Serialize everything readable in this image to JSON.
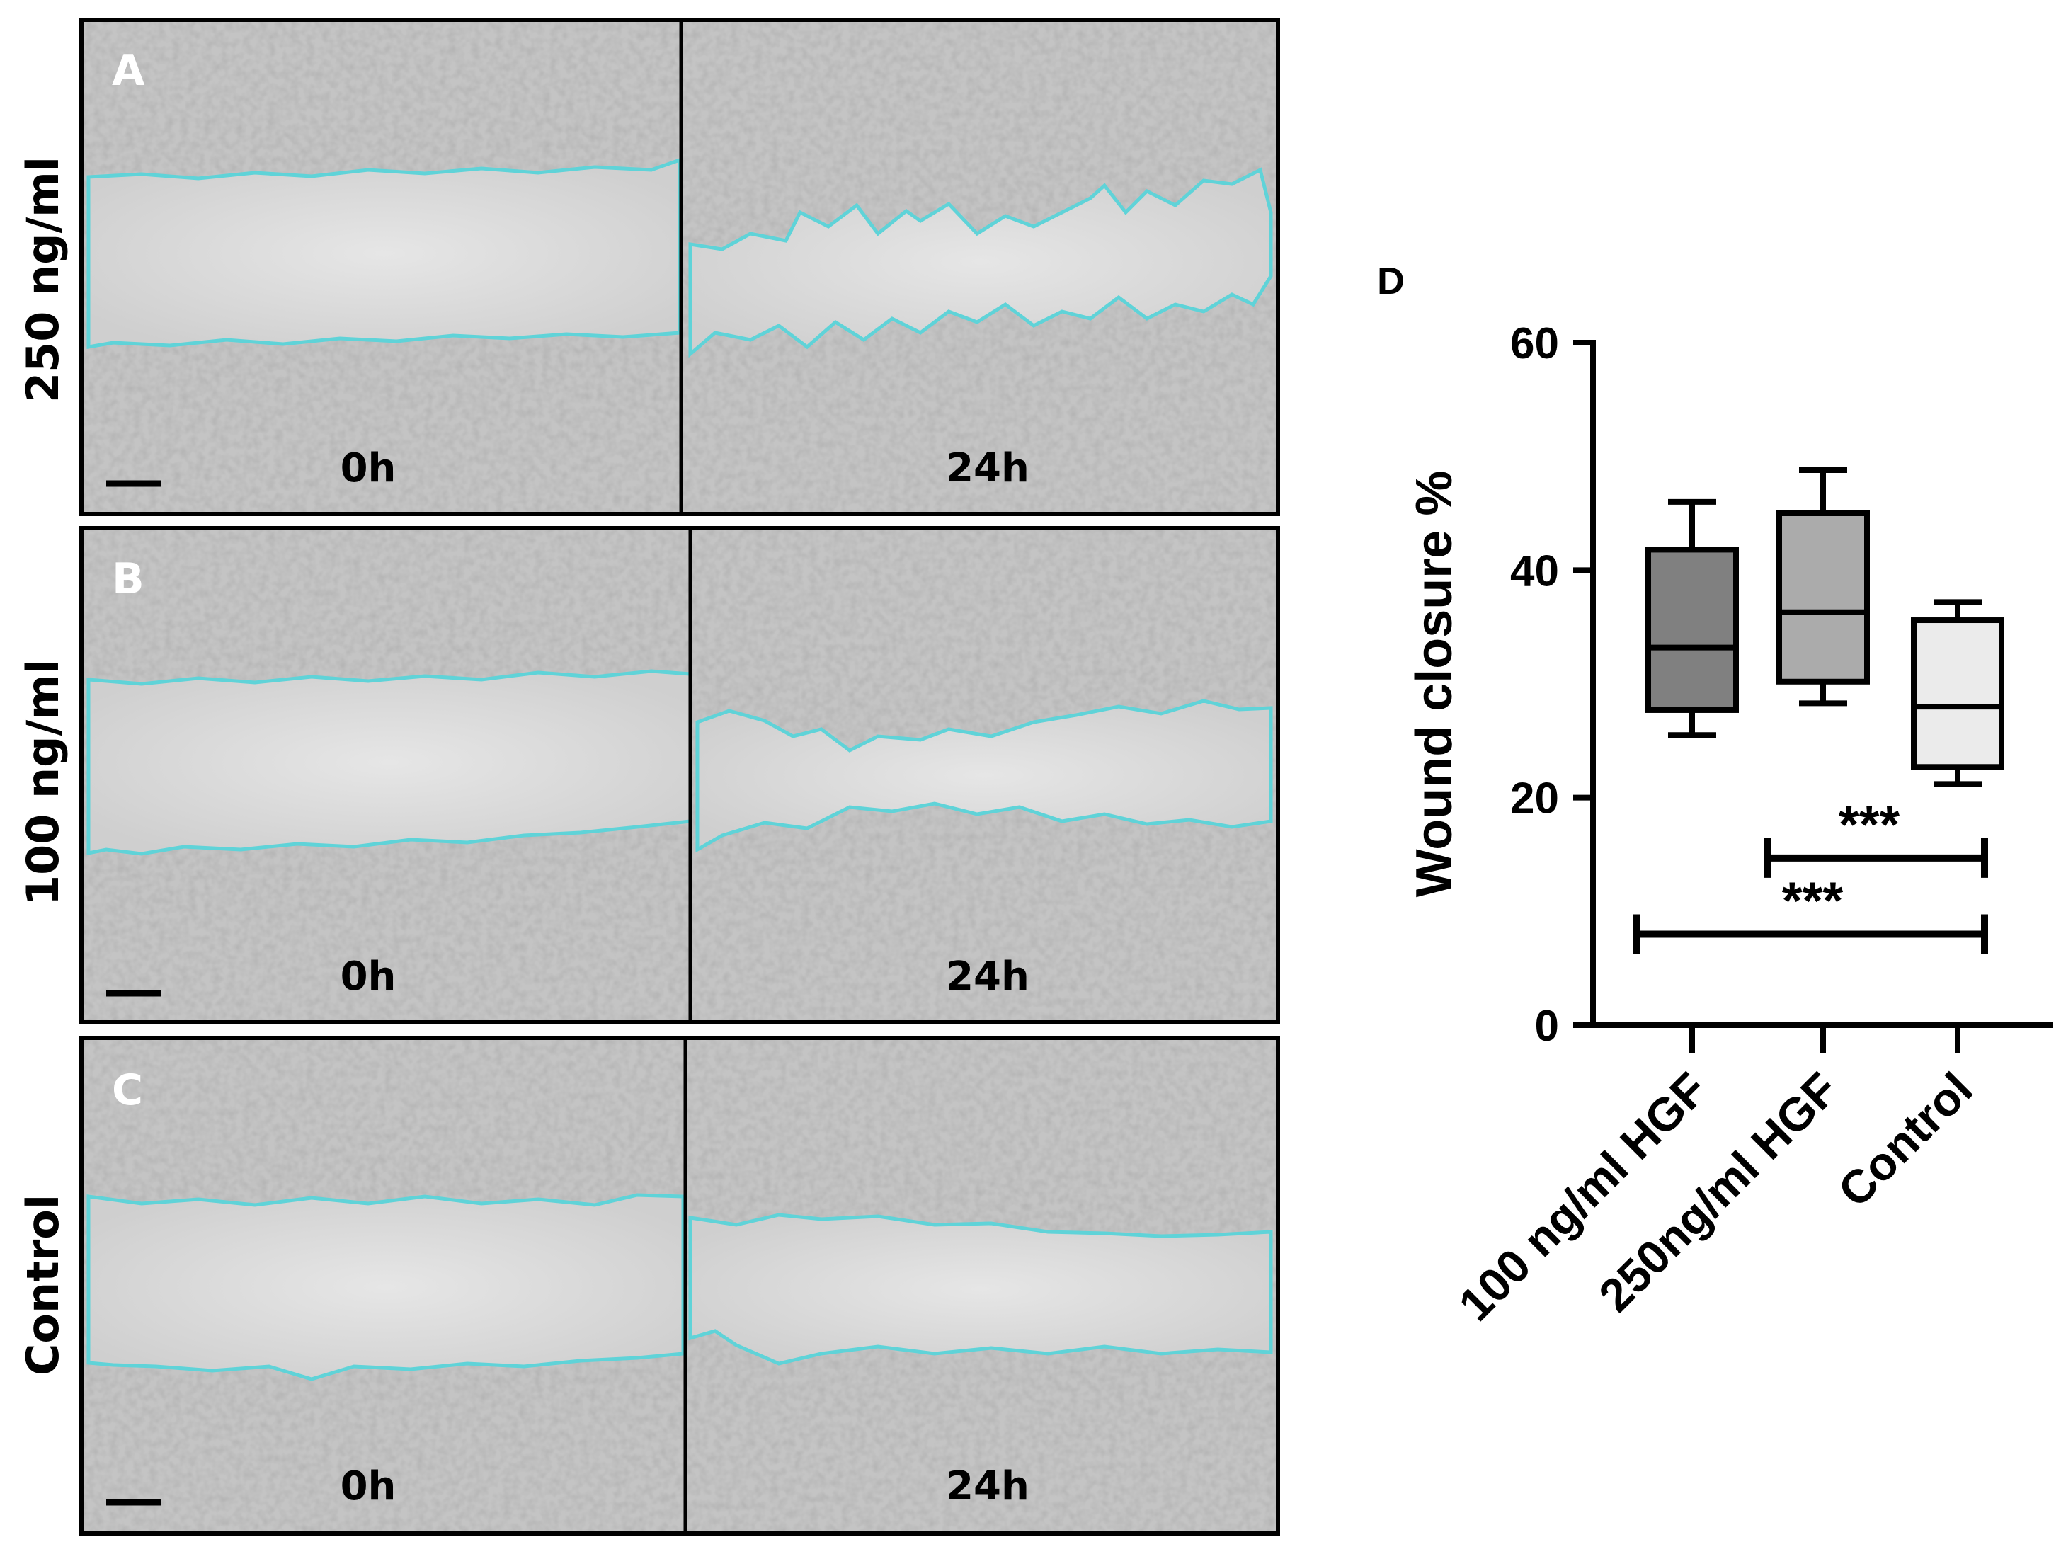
{
  "figure": {
    "panels": [
      {
        "letter": "A",
        "row_label": "250 ng/ml",
        "left_time": "0h",
        "right_time": "24h"
      },
      {
        "letter": "B",
        "row_label": "100 ng/ml",
        "left_time": "0h",
        "right_time": "24h"
      },
      {
        "letter": "C",
        "row_label": "Control",
        "left_time": "0h",
        "right_time": "24h"
      }
    ],
    "colors": {
      "wound_edge": "#5fd3d8",
      "frame": "#000000",
      "cells": "#c8c8c8",
      "wound_area": "#dcdcdc"
    }
  },
  "chart_panel_letter": "D",
  "chart_data": {
    "type": "box",
    "title": "",
    "ylabel": "Wound closure %",
    "ylim": [
      0,
      60
    ],
    "yticks": [
      0,
      20,
      40,
      60
    ],
    "categories": [
      "100 ng/ml HGF",
      "250ng/ml HGF",
      "Control"
    ],
    "boxes": [
      {
        "category": "100 ng/ml HGF",
        "min": 25.5,
        "q1": 27.7,
        "median": 33.2,
        "q3": 41.8,
        "max": 46.0,
        "fill": "#808080"
      },
      {
        "category": "250ng/ml HGF",
        "min": 28.3,
        "q1": 30.2,
        "median": 36.3,
        "q3": 45.0,
        "max": 48.8,
        "fill": "#ababab"
      },
      {
        "category": "Control",
        "min": 21.2,
        "q1": 22.7,
        "median": 28.0,
        "q3": 35.6,
        "max": 37.2,
        "fill": "#ebebeb"
      }
    ],
    "significance": [
      {
        "from": "250ng/ml HGF",
        "to": "Control",
        "label": "***",
        "y": 14.7
      },
      {
        "from": "100 ng/ml HGF",
        "to": "Control",
        "label": "***",
        "y": 8.0
      }
    ],
    "grid": false
  }
}
